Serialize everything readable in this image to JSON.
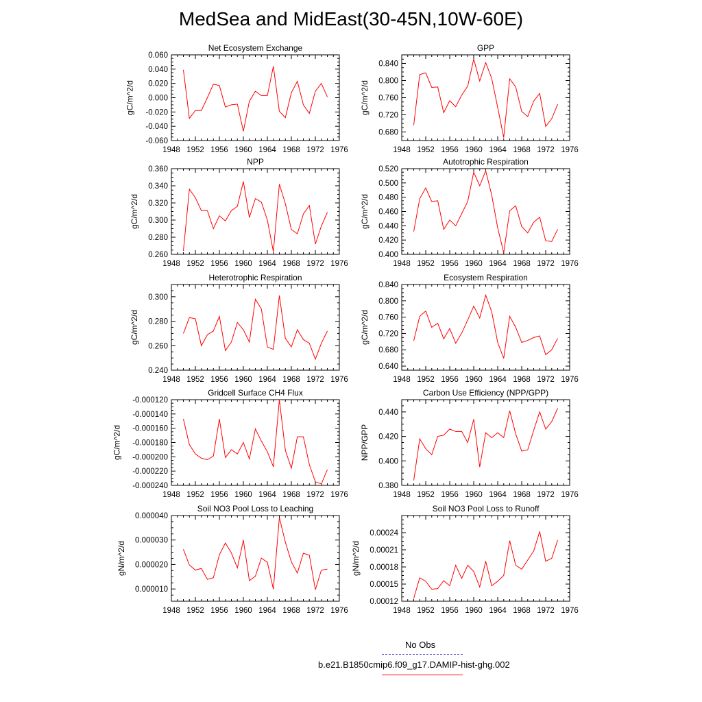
{
  "title": "MedSea and MidEast(30-45N,10W-60E)",
  "legend": {
    "obs_label": "No Obs",
    "obs_color": "#5555cc",
    "model_label": "b.e21.B1850cmip6.f09_g17.DAMIP-hist-ghg.002",
    "model_color": "#ff0000"
  },
  "line_color": "#ff0000",
  "chart_data": [
    {
      "type": "line",
      "title": "Net Ecosystem Exchange",
      "ylabel": "gC/m^2/d",
      "xlim": [
        1948,
        1976
      ],
      "ylim": [
        -0.06,
        0.06
      ],
      "xticks": [
        "1948",
        "1952",
        "1956",
        "1960",
        "1964",
        "1968",
        "1972",
        "1976"
      ],
      "yticks": [
        "-0.060",
        "-0.040",
        "-0.020",
        "0.000",
        "0.020",
        "0.040",
        "0.060"
      ],
      "x": [
        1950,
        1951,
        1952,
        1953,
        1954,
        1955,
        1956,
        1957,
        1958,
        1959,
        1960,
        1961,
        1962,
        1963,
        1964,
        1965,
        1966,
        1967,
        1968,
        1969,
        1970,
        1971,
        1972,
        1973,
        1974
      ],
      "y": [
        0.039,
        -0.029,
        -0.018,
        -0.018,
        0.0,
        0.019,
        0.017,
        -0.013,
        -0.01,
        -0.009,
        -0.047,
        -0.005,
        0.009,
        0.003,
        0.003,
        0.044,
        -0.019,
        -0.028,
        0.007,
        0.023,
        -0.01,
        -0.022,
        0.009,
        0.02,
        0.001
      ]
    },
    {
      "type": "line",
      "title": "GPP",
      "ylabel": "gC/m^2/d",
      "xlim": [
        1948,
        1976
      ],
      "ylim": [
        0.66,
        0.86
      ],
      "xticks": [
        "1948",
        "1952",
        "1956",
        "1960",
        "1964",
        "1968",
        "1972",
        "1976"
      ],
      "yticks": [
        "0.680",
        "0.720",
        "0.760",
        "0.800",
        "0.840"
      ],
      "x": [
        1950,
        1951,
        1952,
        1953,
        1954,
        1955,
        1956,
        1957,
        1958,
        1959,
        1960,
        1961,
        1962,
        1963,
        1964,
        1965,
        1966,
        1967,
        1968,
        1969,
        1970,
        1971,
        1972,
        1973,
        1974
      ],
      "y": [
        0.696,
        0.814,
        0.818,
        0.784,
        0.785,
        0.725,
        0.753,
        0.739,
        0.766,
        0.787,
        0.85,
        0.799,
        0.842,
        0.805,
        0.737,
        0.667,
        0.804,
        0.785,
        0.728,
        0.716,
        0.752,
        0.77,
        0.693,
        0.711,
        0.745
      ]
    },
    {
      "type": "line",
      "title": "NPP",
      "ylabel": "gC/m^2/d",
      "xlim": [
        1948,
        1976
      ],
      "ylim": [
        0.26,
        0.36
      ],
      "xticks": [
        "1948",
        "1952",
        "1956",
        "1960",
        "1964",
        "1968",
        "1972",
        "1976"
      ],
      "yticks": [
        "0.260",
        "0.280",
        "0.300",
        "0.320",
        "0.340",
        "0.360"
      ],
      "x": [
        1950,
        1951,
        1952,
        1953,
        1954,
        1955,
        1956,
        1957,
        1958,
        1959,
        1960,
        1961,
        1962,
        1963,
        1964,
        1965,
        1966,
        1967,
        1968,
        1969,
        1970,
        1971,
        1972,
        1973,
        1974
      ],
      "y": [
        0.264,
        0.336,
        0.326,
        0.311,
        0.311,
        0.29,
        0.305,
        0.299,
        0.311,
        0.316,
        0.345,
        0.303,
        0.325,
        0.321,
        0.3,
        0.263,
        0.342,
        0.319,
        0.289,
        0.284,
        0.307,
        0.317,
        0.272,
        0.293,
        0.309
      ]
    },
    {
      "type": "line",
      "title": "Autotrophic Respiration",
      "ylabel": "gC/m^2/d",
      "xlim": [
        1948,
        1976
      ],
      "ylim": [
        0.4,
        0.52
      ],
      "xticks": [
        "1948",
        "1952",
        "1956",
        "1960",
        "1964",
        "1968",
        "1972",
        "1976"
      ],
      "yticks": [
        "0.400",
        "0.420",
        "0.440",
        "0.460",
        "0.480",
        "0.500",
        "0.520"
      ],
      "x": [
        1950,
        1951,
        1952,
        1953,
        1954,
        1955,
        1956,
        1957,
        1958,
        1959,
        1960,
        1961,
        1962,
        1963,
        1964,
        1965,
        1966,
        1967,
        1968,
        1969,
        1970,
        1971,
        1972,
        1973,
        1974
      ],
      "y": [
        0.432,
        0.478,
        0.493,
        0.474,
        0.475,
        0.435,
        0.448,
        0.44,
        0.457,
        0.474,
        0.515,
        0.496,
        0.517,
        0.483,
        0.437,
        0.402,
        0.461,
        0.468,
        0.439,
        0.43,
        0.445,
        0.452,
        0.419,
        0.418,
        0.435
      ]
    },
    {
      "type": "line",
      "title": "Heterotrophic Respiration",
      "ylabel": "gC/m^2/d",
      "xlim": [
        1948,
        1976
      ],
      "ylim": [
        0.24,
        0.31
      ],
      "xticks": [
        "1948",
        "1952",
        "1956",
        "1960",
        "1964",
        "1968",
        "1972",
        "1976"
      ],
      "yticks": [
        "0.240",
        "0.260",
        "0.280",
        "0.300"
      ],
      "x": [
        1950,
        1951,
        1952,
        1953,
        1954,
        1955,
        1956,
        1957,
        1958,
        1959,
        1960,
        1961,
        1962,
        1963,
        1964,
        1965,
        1966,
        1967,
        1968,
        1969,
        1970,
        1971,
        1972,
        1973,
        1974
      ],
      "y": [
        0.27,
        0.283,
        0.282,
        0.26,
        0.269,
        0.272,
        0.284,
        0.256,
        0.263,
        0.279,
        0.273,
        0.263,
        0.298,
        0.29,
        0.259,
        0.257,
        0.301,
        0.266,
        0.259,
        0.273,
        0.265,
        0.262,
        0.249,
        0.262,
        0.272
      ]
    },
    {
      "type": "line",
      "title": "Ecosystem Respiration",
      "ylabel": "gC/m^2/d",
      "xlim": [
        1948,
        1976
      ],
      "ylim": [
        0.63,
        0.84
      ],
      "xticks": [
        "1948",
        "1952",
        "1956",
        "1960",
        "1964",
        "1968",
        "1972",
        "1976"
      ],
      "yticks": [
        "0.640",
        "0.680",
        "0.720",
        "0.760",
        "0.800",
        "0.840"
      ],
      "x": [
        1950,
        1951,
        1952,
        1953,
        1954,
        1955,
        1956,
        1957,
        1958,
        1959,
        1960,
        1961,
        1962,
        1963,
        1964,
        1965,
        1966,
        1967,
        1968,
        1969,
        1970,
        1971,
        1972,
        1973,
        1974
      ],
      "y": [
        0.702,
        0.762,
        0.775,
        0.735,
        0.745,
        0.707,
        0.732,
        0.696,
        0.721,
        0.753,
        0.787,
        0.758,
        0.814,
        0.773,
        0.698,
        0.659,
        0.762,
        0.735,
        0.698,
        0.703,
        0.71,
        0.714,
        0.668,
        0.68,
        0.708
      ]
    },
    {
      "type": "line",
      "title": "Gridcell Surface CH4 Flux",
      "ylabel": "gC/m^2/d",
      "xlim": [
        1948,
        1976
      ],
      "ylim": [
        -0.00024,
        -0.00012
      ],
      "xticks": [
        "1948",
        "1952",
        "1956",
        "1960",
        "1964",
        "1968",
        "1972",
        "1976"
      ],
      "yticks": [
        "-0.000240",
        "-0.000220",
        "-0.000200",
        "-0.000180",
        "-0.000160",
        "-0.000140",
        "-0.000120"
      ],
      "x": [
        1950,
        1951,
        1952,
        1953,
        1954,
        1955,
        1956,
        1957,
        1958,
        1959,
        1960,
        1961,
        1962,
        1963,
        1964,
        1965,
        1966,
        1967,
        1968,
        1969,
        1970,
        1971,
        1972,
        1973,
        1974
      ],
      "y": [
        -0.000147,
        -0.000183,
        -0.000196,
        -0.000202,
        -0.000204,
        -0.000199,
        -0.000147,
        -0.000201,
        -0.00019,
        -0.000196,
        -0.00018,
        -0.000203,
        -0.000161,
        -0.000178,
        -0.000193,
        -0.000214,
        -0.00012,
        -0.000191,
        -0.000216,
        -0.000172,
        -0.000172,
        -0.000211,
        -0.000235,
        -0.000238,
        -0.000218
      ]
    },
    {
      "type": "line",
      "title": "Carbon Use Efficiency (NPP/GPP)",
      "ylabel": "NPP/GPP",
      "xlim": [
        1948,
        1976
      ],
      "ylim": [
        0.38,
        0.45
      ],
      "xticks": [
        "1948",
        "1952",
        "1956",
        "1960",
        "1964",
        "1968",
        "1972",
        "1976"
      ],
      "yticks": [
        "0.380",
        "0.400",
        "0.420",
        "0.440"
      ],
      "x": [
        1950,
        1951,
        1952,
        1953,
        1954,
        1955,
        1956,
        1957,
        1958,
        1959,
        1960,
        1961,
        1962,
        1963,
        1964,
        1965,
        1966,
        1967,
        1968,
        1969,
        1970,
        1971,
        1972,
        1973,
        1974
      ],
      "y": [
        0.384,
        0.418,
        0.41,
        0.405,
        0.42,
        0.421,
        0.426,
        0.424,
        0.424,
        0.415,
        0.434,
        0.395,
        0.423,
        0.419,
        0.423,
        0.419,
        0.441,
        0.422,
        0.408,
        0.409,
        0.425,
        0.44,
        0.426,
        0.432,
        0.443
      ]
    },
    {
      "type": "line",
      "title": "Soil NO3 Pool Loss to Leaching",
      "ylabel": "gN/m^2/d",
      "xlim": [
        1948,
        1976
      ],
      "ylim": [
        5e-06,
        4e-05
      ],
      "xticks": [
        "1948",
        "1952",
        "1956",
        "1960",
        "1964",
        "1968",
        "1972",
        "1976"
      ],
      "yticks": [
        "0.000010",
        "0.000020",
        "0.000030",
        "0.000040"
      ],
      "x": [
        1950,
        1951,
        1952,
        1953,
        1954,
        1955,
        1956,
        1957,
        1958,
        1959,
        1960,
        1961,
        1962,
        1963,
        1964,
        1965,
        1966,
        1967,
        1968,
        1969,
        1970,
        1971,
        1972,
        1973,
        1974
      ],
      "y": [
        2.62e-05,
        1.98e-05,
        1.77e-05,
        1.84e-05,
        1.39e-05,
        1.46e-05,
        2.4e-05,
        2.88e-05,
        2.47e-05,
        1.86e-05,
        3e-05,
        1.34e-05,
        1.52e-05,
        2.26e-05,
        2.09e-05,
        9.9e-06,
        3.92e-05,
        2.91e-05,
        2.11e-05,
        1.65e-05,
        2.46e-05,
        2.38e-05,
        9.7e-06,
        1.77e-05,
        1.81e-05
      ]
    },
    {
      "type": "line",
      "title": "Soil NO3 Pool Loss to Runoff",
      "ylabel": "gN/m^2/d",
      "xlim": [
        1948,
        1976
      ],
      "ylim": [
        0.00012,
        0.00027
      ],
      "xticks": [
        "1948",
        "1952",
        "1956",
        "1960",
        "1964",
        "1968",
        "1972",
        "1976"
      ],
      "yticks": [
        "0.00012",
        "0.00015",
        "0.00018",
        "0.00021",
        "0.00024"
      ],
      "x": [
        1950,
        1951,
        1952,
        1953,
        1954,
        1955,
        1956,
        1957,
        1958,
        1959,
        1960,
        1961,
        1962,
        1963,
        1964,
        1965,
        1966,
        1967,
        1968,
        1969,
        1970,
        1971,
        1972,
        1973,
        1974
      ],
      "y": [
        0.000125,
        0.000161,
        0.000155,
        0.000141,
        0.000142,
        0.000156,
        0.000147,
        0.000183,
        0.00016,
        0.000183,
        0.000172,
        0.000145,
        0.00019,
        0.000147,
        0.000155,
        0.000165,
        0.000226,
        0.000183,
        0.000176,
        0.000192,
        0.000208,
        0.000242,
        0.00019,
        0.000195,
        0.000227
      ]
    }
  ]
}
